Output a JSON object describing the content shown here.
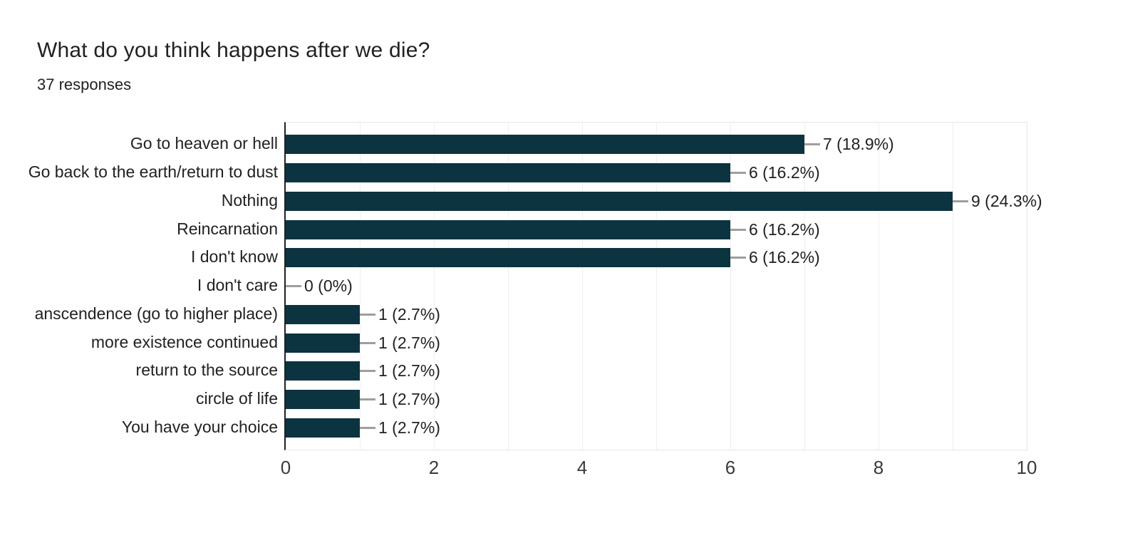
{
  "header": {
    "title": "What do you think happens after we die?",
    "responses": "37 responses"
  },
  "chart_data": {
    "type": "bar",
    "orientation": "horizontal",
    "title": "What do you think happens after we die?",
    "subtitle": "37 responses",
    "total_responses": 37,
    "categories": [
      "Go to heaven or hell",
      "Go back to the earth/return to dust",
      "Nothing",
      "Reincarnation",
      "I don't know",
      "I don't care",
      "anscendence (go to higher place)",
      "more existence continued",
      "return to the source",
      "circle of life",
      "You have your choice"
    ],
    "values": [
      7,
      6,
      9,
      6,
      6,
      0,
      1,
      1,
      1,
      1,
      1
    ],
    "value_labels": [
      "7 (18.9%)",
      "6 (16.2%)",
      "9 (24.3%)",
      "6 (16.2%)",
      "6 (16.2%)",
      "0 (0%)",
      "1 (2.7%)",
      "1 (2.7%)",
      "1 (2.7%)",
      "1 (2.7%)",
      "1 (2.7%)"
    ],
    "xlabel": "",
    "ylabel": "",
    "x_ticks": [
      0,
      2,
      4,
      6,
      8,
      10
    ],
    "xlim": [
      0,
      10
    ],
    "grid": "vertical lines every 1 unit",
    "legend": "none",
    "colors": {
      "bar": "#0c3340",
      "connector": "#9e9e9e",
      "grid": "#efefef",
      "axis": "#212121",
      "text": "#212121",
      "tick_text": "#3b3b3b",
      "background": "#ffffff"
    }
  }
}
